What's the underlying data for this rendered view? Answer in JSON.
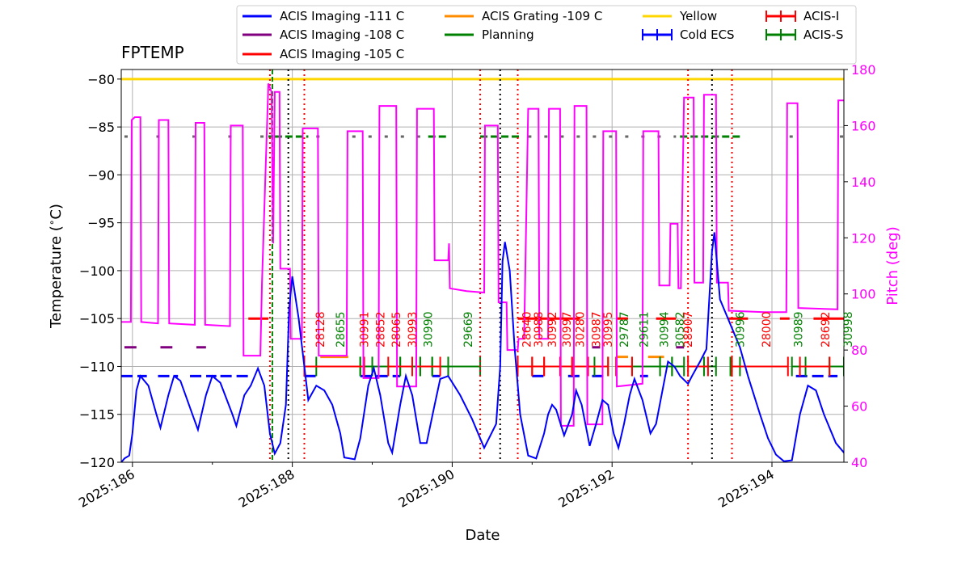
{
  "chart_data": {
    "type": "line",
    "title": "FPTEMP",
    "xlabel": "Date",
    "ylabel": "Temperature ($^\\circ$C)",
    "y2label": "Pitch (deg)",
    "xlim": [
      185.86,
      194.9
    ],
    "ylim": [
      -120,
      -79
    ],
    "y2lim": [
      40,
      180
    ],
    "grid": true,
    "x_ticks": [
      186,
      188,
      190,
      192,
      194
    ],
    "x_tick_labels": [
      "2025:186",
      "2025:188",
      "2025:190",
      "2025:192",
      "2025:194"
    ],
    "y_ticks": [
      -120,
      -115,
      -110,
      -105,
      -100,
      -95,
      -90,
      -85,
      -80
    ],
    "y_tick_labels": [
      "−120",
      "−115",
      "−110",
      "−105",
      "−100",
      "−95",
      "−90",
      "−85",
      "−80"
    ],
    "y2_ticks": [
      40,
      60,
      80,
      100,
      120,
      140,
      160,
      180
    ],
    "y2_tick_labels": [
      "40",
      "60",
      "80",
      "100",
      "120",
      "140",
      "160",
      "180"
    ],
    "legend": {
      "placement": "top",
      "entries": [
        {
          "label": "ACIS Imaging -111 C",
          "color": "#0000ff",
          "marker": "line"
        },
        {
          "label": "ACIS Imaging -108 C",
          "color": "#800080",
          "marker": "line"
        },
        {
          "label": "ACIS Imaging -105 C",
          "color": "#ff0000",
          "marker": "line"
        },
        {
          "label": "ACIS Grating -109 C",
          "color": "#ff8c00",
          "marker": "line"
        },
        {
          "label": "Planning",
          "color": "#008000",
          "marker": "line"
        },
        {
          "label": "Yellow",
          "color": "#ffd700",
          "marker": "line"
        },
        {
          "label": "Cold ECS",
          "color": "#0000ff",
          "marker": "cross"
        },
        {
          "label": "ACIS-I",
          "color": "#ff0000",
          "marker": "cross"
        },
        {
          "label": "ACIS-S",
          "color": "#008000",
          "marker": "cross"
        }
      ]
    },
    "colors": {
      "fptemp": "#0000ff",
      "pitch": "#ff00ff",
      "yellow": "#ffd700",
      "planning": "#008000",
      "limit_111": "#0000ff",
      "limit_108": "#800080",
      "limit_105": "#ff0000",
      "grating": "#ff8c00",
      "gray_dotted": "#666666",
      "red_dotted": "#ff0000",
      "black_dotted": "#000000"
    },
    "yellow_limit": -80,
    "fptemp_series": [
      [
        185.86,
        -120
      ],
      [
        185.9,
        -119.6
      ],
      [
        185.96,
        -119.3
      ],
      [
        186.0,
        -117
      ],
      [
        186.05,
        -112.5
      ],
      [
        186.1,
        -111
      ],
      [
        186.2,
        -112
      ],
      [
        186.3,
        -115
      ],
      [
        186.35,
        -116.4
      ],
      [
        186.45,
        -113
      ],
      [
        186.52,
        -111
      ],
      [
        186.6,
        -111.5
      ],
      [
        186.75,
        -115
      ],
      [
        186.82,
        -116.6
      ],
      [
        186.92,
        -113
      ],
      [
        187.0,
        -111
      ],
      [
        187.1,
        -111.7
      ],
      [
        187.25,
        -115
      ],
      [
        187.3,
        -116.2
      ],
      [
        187.4,
        -113
      ],
      [
        187.48,
        -112
      ],
      [
        187.57,
        -110.2
      ],
      [
        187.65,
        -112
      ],
      [
        187.72,
        -117
      ],
      [
        187.78,
        -119.1
      ],
      [
        187.85,
        -118
      ],
      [
        187.92,
        -114
      ],
      [
        187.96,
        -104
      ],
      [
        188.0,
        -100.6
      ],
      [
        188.08,
        -105
      ],
      [
        188.15,
        -110
      ],
      [
        188.2,
        -113.5
      ],
      [
        188.3,
        -112
      ],
      [
        188.4,
        -112.5
      ],
      [
        188.5,
        -114
      ],
      [
        188.6,
        -117
      ],
      [
        188.65,
        -119.5
      ],
      [
        188.78,
        -119.7
      ],
      [
        188.85,
        -117.5
      ],
      [
        188.95,
        -112
      ],
      [
        189.02,
        -110.2
      ],
      [
        189.1,
        -113
      ],
      [
        189.2,
        -118
      ],
      [
        189.25,
        -119
      ],
      [
        189.35,
        -114
      ],
      [
        189.42,
        -111
      ],
      [
        189.5,
        -113
      ],
      [
        189.6,
        -118
      ],
      [
        189.68,
        -118
      ],
      [
        189.78,
        -114
      ],
      [
        189.85,
        -111.3
      ],
      [
        189.95,
        -111
      ],
      [
        190.1,
        -113
      ],
      [
        190.25,
        -115.5
      ],
      [
        190.4,
        -118.5
      ],
      [
        190.55,
        -116
      ],
      [
        190.6,
        -110
      ],
      [
        190.63,
        -99
      ],
      [
        190.66,
        -97
      ],
      [
        190.72,
        -100
      ],
      [
        190.78,
        -108
      ],
      [
        190.85,
        -115
      ],
      [
        190.95,
        -119.3
      ],
      [
        191.05,
        -119.6
      ],
      [
        191.15,
        -117
      ],
      [
        191.2,
        -115
      ],
      [
        191.25,
        -114
      ],
      [
        191.3,
        -114.5
      ],
      [
        191.4,
        -117.2
      ],
      [
        191.5,
        -115
      ],
      [
        191.55,
        -112.5
      ],
      [
        191.62,
        -114
      ],
      [
        191.72,
        -118.3
      ],
      [
        191.8,
        -116
      ],
      [
        191.88,
        -113.5
      ],
      [
        191.95,
        -114
      ],
      [
        192.02,
        -117
      ],
      [
        192.08,
        -118.5
      ],
      [
        192.15,
        -116
      ],
      [
        192.22,
        -113
      ],
      [
        192.28,
        -111.3
      ],
      [
        192.38,
        -113.5
      ],
      [
        192.48,
        -117
      ],
      [
        192.55,
        -116
      ],
      [
        192.7,
        -109.5
      ],
      [
        192.78,
        -110
      ],
      [
        192.85,
        -111
      ],
      [
        192.95,
        -111.8
      ],
      [
        193.0,
        -111
      ],
      [
        193.1,
        -109.5
      ],
      [
        193.18,
        -108.2
      ],
      [
        193.25,
        -98
      ],
      [
        193.28,
        -96
      ],
      [
        193.35,
        -103
      ],
      [
        193.5,
        -106
      ],
      [
        193.6,
        -108
      ],
      [
        193.7,
        -111
      ],
      [
        193.85,
        -115
      ],
      [
        193.95,
        -117.5
      ],
      [
        194.05,
        -119.2
      ],
      [
        194.15,
        -119.9
      ],
      [
        194.25,
        -119.8
      ],
      [
        194.35,
        -115
      ],
      [
        194.45,
        -112
      ],
      [
        194.55,
        -112.5
      ],
      [
        194.65,
        -115
      ],
      [
        194.8,
        -118
      ],
      [
        194.9,
        -119
      ],
      [
        194.98,
        -114.5
      ]
    ],
    "pitch_series": [
      [
        185.86,
        90
      ],
      [
        185.98,
        90
      ],
      [
        185.99,
        162
      ],
      [
        186.03,
        163
      ],
      [
        186.1,
        163
      ],
      [
        186.11,
        90
      ],
      [
        186.32,
        89.5
      ],
      [
        186.33,
        162
      ],
      [
        186.45,
        162
      ],
      [
        186.46,
        89.5
      ],
      [
        186.78,
        89
      ],
      [
        186.79,
        161
      ],
      [
        186.9,
        161
      ],
      [
        186.91,
        89
      ],
      [
        187.22,
        88.5
      ],
      [
        187.23,
        160
      ],
      [
        187.38,
        160
      ],
      [
        187.39,
        78
      ],
      [
        187.6,
        78
      ],
      [
        187.62,
        104
      ],
      [
        187.7,
        175
      ],
      [
        187.74,
        172
      ],
      [
        187.76,
        118
      ],
      [
        187.78,
        172
      ],
      [
        187.84,
        172
      ],
      [
        187.85,
        109
      ],
      [
        187.97,
        109
      ],
      [
        187.98,
        84
      ],
      [
        188.12,
        84
      ],
      [
        188.13,
        159
      ],
      [
        188.32,
        159
      ],
      [
        188.33,
        78
      ],
      [
        188.68,
        78
      ],
      [
        188.69,
        158
      ],
      [
        188.88,
        158
      ],
      [
        188.89,
        70
      ],
      [
        189.08,
        70
      ],
      [
        189.09,
        167
      ],
      [
        189.3,
        167
      ],
      [
        189.31,
        67
      ],
      [
        189.55,
        67
      ],
      [
        189.56,
        166
      ],
      [
        189.77,
        166
      ],
      [
        189.78,
        112
      ],
      [
        189.95,
        112
      ],
      [
        189.96,
        118
      ],
      [
        189.97,
        102
      ],
      [
        190.18,
        101
      ],
      [
        190.4,
        100.5
      ],
      [
        190.41,
        160
      ],
      [
        190.57,
        160
      ],
      [
        190.58,
        97
      ],
      [
        190.68,
        97
      ],
      [
        190.69,
        80
      ],
      [
        190.82,
        80
      ],
      [
        190.83,
        84
      ],
      [
        190.9,
        84
      ],
      [
        190.95,
        166
      ],
      [
        191.08,
        166
      ],
      [
        191.09,
        84
      ],
      [
        191.2,
        84
      ],
      [
        191.21,
        166
      ],
      [
        191.35,
        166
      ],
      [
        191.36,
        53
      ],
      [
        191.52,
        53
      ],
      [
        191.53,
        167
      ],
      [
        191.68,
        167
      ],
      [
        191.69,
        53.5
      ],
      [
        191.88,
        53.5
      ],
      [
        191.89,
        158
      ],
      [
        192.05,
        158
      ],
      [
        192.06,
        67
      ],
      [
        192.38,
        68
      ],
      [
        192.39,
        158
      ],
      [
        192.58,
        158
      ],
      [
        192.59,
        103
      ],
      [
        192.72,
        103
      ],
      [
        192.73,
        125
      ],
      [
        192.82,
        125
      ],
      [
        192.83,
        102
      ],
      [
        192.86,
        102
      ],
      [
        192.9,
        170
      ],
      [
        193.02,
        170
      ],
      [
        193.03,
        104
      ],
      [
        193.14,
        104
      ],
      [
        193.15,
        171
      ],
      [
        193.3,
        171
      ],
      [
        193.31,
        104
      ],
      [
        193.45,
        104
      ],
      [
        193.46,
        94
      ],
      [
        193.9,
        93.5
      ],
      [
        194.18,
        93.5
      ],
      [
        194.19,
        168
      ],
      [
        194.32,
        168
      ],
      [
        194.33,
        95
      ],
      [
        194.82,
        94.5
      ],
      [
        194.83,
        169
      ],
      [
        194.9,
        169
      ]
    ],
    "limit_111_segments": [
      [
        185.86,
        186.18
      ],
      [
        186.32,
        186.57
      ],
      [
        186.72,
        187.05
      ],
      [
        187.1,
        187.5
      ],
      [
        188.15,
        188.3
      ],
      [
        188.85,
        189.35
      ],
      [
        189.75,
        189.85
      ],
      [
        191.0,
        191.2
      ],
      [
        191.45,
        191.6
      ],
      [
        191.75,
        191.9
      ],
      [
        192.35,
        192.45
      ],
      [
        194.3,
        194.82
      ]
    ],
    "limit_108_segments": [
      [
        185.9,
        186.05
      ],
      [
        186.35,
        186.5
      ],
      [
        186.8,
        186.92
      ],
      [
        191.75,
        191.85
      ],
      [
        192.8,
        192.9
      ]
    ],
    "limit_105_segments": [
      [
        187.45,
        187.7
      ],
      [
        190.82,
        191.6
      ],
      [
        192.05,
        192.2
      ],
      [
        192.55,
        192.8
      ],
      [
        193.45,
        193.7
      ],
      [
        194.1,
        194.22
      ],
      [
        194.52,
        194.9
      ]
    ],
    "planning_dash_segments": [
      [
        187.7,
        187.76
      ],
      [
        187.78,
        188.2
      ],
      [
        189.7,
        189.95
      ],
      [
        190.35,
        190.85
      ],
      [
        192.85,
        193.62
      ]
    ],
    "planning_dot_segments": [
      [
        185.9,
        186.05
      ],
      [
        186.3,
        186.5
      ],
      [
        186.75,
        186.95
      ],
      [
        187.2,
        187.4
      ],
      [
        187.6,
        187.7
      ],
      [
        188.3,
        188.45
      ],
      [
        188.75,
        189.6
      ],
      [
        190.95,
        192.8
      ],
      [
        194.22,
        194.35
      ],
      [
        194.85,
        194.9
      ]
    ],
    "grating_segments": [
      [
        188.35,
        188.7
      ],
      [
        192.05,
        192.2
      ],
      [
        192.45,
        192.65
      ]
    ],
    "acis_i_segments": [
      [
        188.15,
        188.9
      ],
      [
        189.2,
        189.5
      ],
      [
        189.55,
        189.85
      ],
      [
        190.82,
        191.0
      ],
      [
        191.0,
        191.15
      ],
      [
        191.15,
        191.35
      ],
      [
        191.35,
        191.5
      ],
      [
        191.5,
        191.7
      ],
      [
        191.7,
        191.95
      ],
      [
        192.05,
        192.25
      ],
      [
        192.95,
        193.2
      ],
      [
        193.5,
        194.2
      ],
      [
        194.35,
        194.72
      ]
    ],
    "acis_s_segments": [
      [
        188.3,
        188.85
      ],
      [
        188.85,
        189.0
      ],
      [
        189.0,
        189.35
      ],
      [
        189.35,
        189.6
      ],
      [
        189.6,
        189.75
      ],
      [
        189.75,
        189.95
      ],
      [
        189.95,
        190.35
      ],
      [
        191.78,
        191.95
      ],
      [
        192.25,
        192.6
      ],
      [
        192.6,
        192.75
      ],
      [
        192.75,
        192.9
      ],
      [
        193.15,
        193.3
      ],
      [
        193.48,
        193.6
      ],
      [
        194.25,
        194.42
      ],
      [
        194.72,
        194.9
      ]
    ],
    "obsid_labels": [
      {
        "x": 188.4,
        "text": "28128",
        "color": "red"
      },
      {
        "x": 188.65,
        "text": "28655",
        "color": "green"
      },
      {
        "x": 188.95,
        "text": "30991",
        "color": "red"
      },
      {
        "x": 189.15,
        "text": "28852",
        "color": "red"
      },
      {
        "x": 189.35,
        "text": "28065",
        "color": "red"
      },
      {
        "x": 189.55,
        "text": "30993",
        "color": "red"
      },
      {
        "x": 189.75,
        "text": "30990",
        "color": "green"
      },
      {
        "x": 190.25,
        "text": "29669",
        "color": "green"
      },
      {
        "x": 190.98,
        "text": "28640",
        "color": "red"
      },
      {
        "x": 191.13,
        "text": "30988",
        "color": "red"
      },
      {
        "x": 191.3,
        "text": "30992",
        "color": "red"
      },
      {
        "x": 191.48,
        "text": "30997",
        "color": "red"
      },
      {
        "x": 191.65,
        "text": "30280",
        "color": "red"
      },
      {
        "x": 191.85,
        "text": "30987",
        "color": "red"
      },
      {
        "x": 192.0,
        "text": "30995",
        "color": "red"
      },
      {
        "x": 192.2,
        "text": "29787",
        "color": "green"
      },
      {
        "x": 192.45,
        "text": "29611",
        "color": "green"
      },
      {
        "x": 192.7,
        "text": "30994",
        "color": "green"
      },
      {
        "x": 192.9,
        "text": "30582",
        "color": "green"
      },
      {
        "x": 193.0,
        "text": "28907",
        "color": "red"
      },
      {
        "x": 193.65,
        "text": "30996",
        "color": "green"
      },
      {
        "x": 193.98,
        "text": "28000",
        "color": "red"
      },
      {
        "x": 194.38,
        "text": "30989",
        "color": "green"
      },
      {
        "x": 194.72,
        "text": "28692",
        "color": "red"
      },
      {
        "x": 195.0,
        "text": "30998",
        "color": "green"
      }
    ],
    "vlines_black": [
      187.95,
      190.6,
      193.25
    ],
    "vlines_red": [
      187.72,
      188.15,
      190.35,
      190.82,
      192.95,
      193.5
    ],
    "vline_green": [
      187.75
    ]
  }
}
